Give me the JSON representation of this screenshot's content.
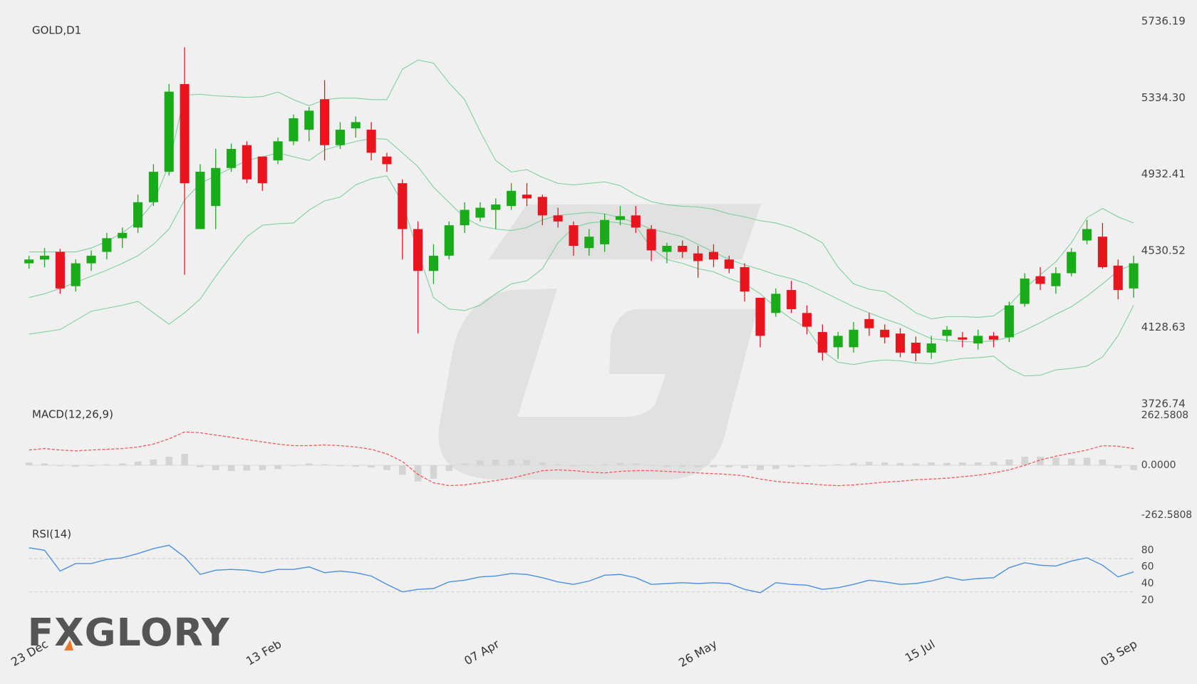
{
  "logo": "FXGLORY",
  "chart_data": [
    {
      "type": "candlestick",
      "title": "GOLD,D1",
      "categories": [
        "23 Dec",
        null,
        null,
        null,
        null,
        null,
        null,
        null,
        null,
        null,
        null,
        null,
        null,
        null,
        null,
        "13 Feb",
        null,
        null,
        null,
        null,
        null,
        null,
        null,
        null,
        null,
        null,
        null,
        null,
        null,
        "07 Apr",
        null,
        null,
        null,
        null,
        null,
        null,
        null,
        null,
        null,
        null,
        null,
        null,
        null,
        "26 May",
        null,
        null,
        null,
        null,
        null,
        null,
        null,
        null,
        null,
        null,
        null,
        null,
        null,
        "15 Jul",
        null,
        null,
        null,
        null,
        null,
        null,
        null,
        null,
        null,
        null,
        null,
        null,
        "03 Sep",
        null
      ],
      "open": [
        4465,
        4485,
        4525,
        4345,
        4465,
        4525,
        4597,
        4653,
        4786,
        4946,
        5407,
        4645,
        4766,
        4966,
        5086,
        5026,
        5006,
        5106,
        5167,
        5327,
        5086,
        5174,
        5167,
        5026,
        4886,
        4645,
        4425,
        4505,
        4665,
        4705,
        4746,
        4766,
        4826,
        4814,
        4717,
        4665,
        4545,
        4565,
        4693,
        4717,
        4645,
        4525,
        4557,
        4517,
        4525,
        4485,
        4445,
        4284,
        4204,
        4325,
        4204,
        4104,
        4024,
        4024,
        4172,
        4116,
        4096,
        4048,
        3996,
        4084,
        4076,
        4044,
        4084,
        4076,
        4252,
        4397,
        4345,
        4413,
        4585,
        4605,
        4453,
        4333
      ],
      "high": [
        4505,
        4545,
        4541,
        4485,
        4533,
        4625,
        4653,
        4826,
        4986,
        5407,
        5600,
        4986,
        5066,
        5094,
        5106,
        5026,
        5126,
        5247,
        5287,
        5427,
        5207,
        5237,
        5207,
        5046,
        4906,
        4685,
        4565,
        4685,
        4786,
        4786,
        4806,
        4886,
        4886,
        4826,
        4757,
        4685,
        4645,
        4725,
        4766,
        4766,
        4665,
        4573,
        4585,
        4557,
        4565,
        4505,
        4465,
        4284,
        4333,
        4373,
        4244,
        4144,
        4104,
        4156,
        4204,
        4144,
        4124,
        4080,
        4084,
        4136,
        4104,
        4116,
        4104,
        4264,
        4413,
        4445,
        4445,
        4545,
        4693,
        4677,
        4485,
        4505
      ],
      "low": [
        4437,
        4445,
        4305,
        4317,
        4425,
        4485,
        4545,
        4625,
        4766,
        4926,
        4405,
        4645,
        4645,
        4946,
        4886,
        4846,
        4986,
        5086,
        5106,
        5006,
        5066,
        5126,
        5006,
        4946,
        4485,
        4096,
        4357,
        4485,
        4625,
        4685,
        4645,
        4746,
        4766,
        4665,
        4653,
        4505,
        4505,
        4525,
        4665,
        4625,
        4477,
        4465,
        4493,
        4389,
        4445,
        4413,
        4265,
        4024,
        4184,
        4204,
        4092,
        3955,
        3963,
        3996,
        4084,
        4044,
        3971,
        3951,
        3963,
        4052,
        4024,
        4012,
        4024,
        4052,
        4236,
        4325,
        4305,
        4397,
        4565,
        4437,
        4276,
        4284
      ],
      "close": [
        4485,
        4505,
        4333,
        4465,
        4505,
        4597,
        4625,
        4786,
        4946,
        5367,
        4886,
        4946,
        4966,
        5066,
        4906,
        4886,
        5106,
        5227,
        5267,
        5086,
        5167,
        5207,
        5046,
        4986,
        4645,
        4425,
        4505,
        4665,
        4746,
        4757,
        4774,
        4846,
        4806,
        4717,
        4685,
        4557,
        4605,
        4693,
        4713,
        4653,
        4533,
        4557,
        4525,
        4477,
        4485,
        4437,
        4317,
        4084,
        4305,
        4224,
        4132,
        3996,
        4084,
        4116,
        4124,
        4076,
        3996,
        3992,
        4044,
        4116,
        4064,
        4084,
        4064,
        4244,
        4385,
        4357,
        4413,
        4525,
        4645,
        4445,
        4325,
        4465
      ],
      "up_color": "#1aab1a",
      "down_color": "#e8141e",
      "overlays": [
        {
          "color": "#7ccf9c",
          "values": [
            4525,
            4525,
            4525,
            4525,
            4545,
            4581,
            4625,
            4685,
            4785,
            4985,
            5349,
            5353,
            5345,
            5341,
            5337,
            5341,
            5365,
            5325,
            5293,
            5325,
            5333,
            5333,
            5325,
            5325,
            5485,
            5533,
            5517,
            5413,
            5325,
            5157,
            5005,
            4945,
            4957,
            4917,
            4885,
            4877,
            4885,
            4893,
            4873,
            4825,
            4789,
            4773,
            4765,
            4761,
            4749,
            4725,
            4709,
            4689,
            4677,
            4653,
            4617,
            4573,
            4445,
            4357,
            4329,
            4317,
            4265,
            4205,
            4173,
            4185,
            4185,
            4181,
            4189,
            4245,
            4333,
            4405,
            4473,
            4573,
            4705,
            4753,
            4709,
            4677
          ]
        },
        {
          "color": "#7ccf9c",
          "values": [
            4285,
            4305,
            4333,
            4365,
            4397,
            4429,
            4465,
            4505,
            4565,
            4645,
            4797,
            4885,
            4925,
            4965,
            5005,
            5025,
            5045,
            5025,
            5005,
            5061,
            5085,
            5105,
            5121,
            5117,
            5045,
            4973,
            4865,
            4785,
            4705,
            4661,
            4645,
            4637,
            4653,
            4693,
            4717,
            4725,
            4733,
            4725,
            4705,
            4677,
            4645,
            4625,
            4605,
            4565,
            4525,
            4485,
            4457,
            4433,
            4405,
            4385,
            4357,
            4317,
            4277,
            4237,
            4205,
            4173,
            4145,
            4105,
            4069,
            4061,
            4053,
            4053,
            4057,
            4077,
            4113,
            4153,
            4197,
            4237,
            4293,
            4357,
            4425,
            4461
          ]
        },
        {
          "color": "#7ccf9c",
          "values": [
            4093,
            4105,
            4117,
            4165,
            4213,
            4229,
            4245,
            4265,
            4205,
            4145,
            4205,
            4277,
            4397,
            4505,
            4605,
            4665,
            4673,
            4677,
            4745,
            4793,
            4813,
            4877,
            4909,
            4925,
            4785,
            4525,
            4285,
            4225,
            4217,
            4245,
            4305,
            4357,
            4373,
            4437,
            4573,
            4653,
            4677,
            4685,
            4677,
            4661,
            4545,
            4485,
            4465,
            4437,
            4421,
            4385,
            4357,
            4305,
            4233,
            4173,
            4125,
            4005,
            3945,
            3933,
            3949,
            3957,
            3953,
            3941,
            3937,
            3953,
            3965,
            3969,
            3977,
            3913,
            3873,
            3877,
            3905,
            3913,
            3925,
            3973,
            4085,
            4245
          ]
        }
      ],
      "ylim": [
        3726.74,
        5736.19
      ],
      "yticks": [
        5736.19,
        {
          "value": 5334.3,
          "label": "5334.30"
        },
        4932.41,
        4530.52,
        4128.63,
        3726.74
      ]
    },
    {
      "type": "macd",
      "title": "MACD(12,26,9)",
      "histogram": {
        "color": "#d4d4d4",
        "values": [
          15,
          10,
          -5,
          -8,
          -5,
          5,
          10,
          20,
          30,
          45,
          60,
          -10,
          -25,
          -30,
          -28,
          -25,
          -20,
          -5,
          10,
          5,
          -5,
          -8,
          -12,
          -25,
          -50,
          -85,
          -70,
          -30,
          10,
          25,
          30,
          30,
          28,
          15,
          5,
          -5,
          -3,
          5,
          12,
          10,
          -3,
          -8,
          -10,
          -10,
          -10,
          -12,
          -15,
          -25,
          -20,
          -10,
          -8,
          -5,
          5,
          12,
          18,
          15,
          12,
          10,
          15,
          12,
          15,
          15,
          18,
          30,
          45,
          45,
          40,
          35,
          40,
          30,
          -15,
          -25
        ]
      },
      "signal": {
        "color": "#f05a5a",
        "values": [
          80,
          88,
          80,
          76,
          80,
          84,
          88,
          96,
          111,
          139,
          175,
          171,
          159,
          147,
          135,
          123,
          111,
          103,
          103,
          107,
          103,
          96,
          84,
          60,
          20,
          -48,
          -92,
          -107,
          -103,
          -92,
          -80,
          -68,
          -48,
          -28,
          -24,
          -28,
          -36,
          -40,
          -32,
          -28,
          -28,
          -32,
          -36,
          -40,
          -44,
          -48,
          -56,
          -72,
          -84,
          -92,
          -96,
          -103,
          -107,
          -103,
          -96,
          -88,
          -84,
          -76,
          -72,
          -68,
          -60,
          -52,
          -40,
          -24,
          0,
          28,
          48,
          64,
          80,
          103,
          100,
          88
        ]
      },
      "ylim": [
        -262.5808,
        262.5808
      ],
      "yticks": [
        262.5808,
        {
          "value": 0,
          "label": "0.0000"
        },
        -262.5808
      ]
    },
    {
      "type": "line",
      "title": "RSI(14)",
      "series": [
        {
          "color": "#4a90e2",
          "values": [
            83,
            80,
            55,
            64,
            64,
            69,
            71,
            76,
            82,
            86,
            72,
            51,
            56,
            57,
            56,
            53,
            57,
            57,
            60,
            53,
            55,
            53,
            49,
            39,
            30,
            33,
            34,
            42,
            44,
            48,
            49,
            52,
            51,
            47,
            42,
            39,
            43,
            50,
            51,
            47,
            39,
            40,
            41,
            40,
            41,
            40,
            33,
            29,
            41,
            39,
            38,
            33,
            35,
            39,
            44,
            42,
            39,
            40,
            43,
            48,
            44,
            46,
            47,
            59,
            65,
            62,
            61,
            67,
            71,
            62,
            48,
            54
          ]
        }
      ],
      "ylim": [
        0,
        100
      ],
      "yticks": [
        20,
        40,
        60,
        80
      ],
      "levels": [
        30,
        70
      ]
    }
  ]
}
